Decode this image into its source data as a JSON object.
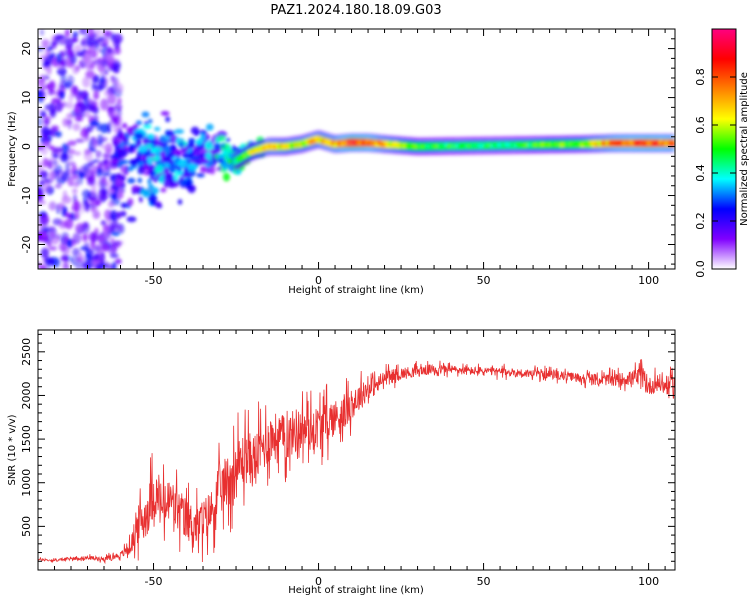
{
  "figure": {
    "title": "PAZ1.2024.180.18.09.G03"
  },
  "chart_data": [
    {
      "type": "heatmap",
      "xlabel": "Height of straight line (km)",
      "ylabel": "Frequency (Hz)",
      "xlim": [
        -85,
        108
      ],
      "ylim": [
        -25,
        24
      ],
      "xticks": [
        -50,
        0,
        50,
        100
      ],
      "yticks": [
        -20,
        -10,
        0,
        10,
        20
      ],
      "colorbar": {
        "label": "Normalized spectral amplitude",
        "range": [
          0,
          1
        ],
        "ticks": [
          0.0,
          0.2,
          0.4,
          0.6,
          0.8
        ],
        "tick_labels": [
          "0.0",
          "0.2",
          "0.4",
          "0.6",
          "0.8"
        ],
        "colormap": [
          "#ffffff",
          "#8000ff",
          "#0000ff",
          "#00ffff",
          "#00ff00",
          "#ffff00",
          "#ff8000",
          "#ff0000",
          "#ff0080"
        ]
      },
      "ridge": {
        "x": [
          -60,
          -55,
          -50,
          -45,
          -40,
          -35,
          -30,
          -25,
          -20,
          -15,
          -10,
          -5,
          0,
          5,
          10,
          15,
          20,
          30,
          40,
          50,
          60,
          70,
          80,
          90,
          100,
          108
        ],
        "freq": [
          -3,
          -2,
          -3,
          -2,
          -4,
          -1,
          -1,
          -3,
          -1,
          0,
          0,
          0.5,
          1.5,
          0.5,
          0.8,
          0.8,
          0.5,
          0,
          0.1,
          0.2,
          0.3,
          0.4,
          0.5,
          0.7,
          0.7,
          0.7
        ],
        "amplitude": [
          0.25,
          0.3,
          0.35,
          0.3,
          0.35,
          0.3,
          0.4,
          0.45,
          0.55,
          0.65,
          0.6,
          0.6,
          0.65,
          0.7,
          0.85,
          0.8,
          0.65,
          0.5,
          0.45,
          0.45,
          0.45,
          0.5,
          0.55,
          0.75,
          0.8,
          0.75
        ]
      }
    },
    {
      "type": "line",
      "xlabel": "Height of straight line (km)",
      "ylabel": "SNR (10 * v/v)",
      "xlim": [
        -85,
        108
      ],
      "ylim": [
        0,
        2750
      ],
      "xticks": [
        -50,
        0,
        50,
        100
      ],
      "yticks": [
        500,
        1000,
        1500,
        2000,
        2500
      ],
      "series": [
        {
          "color": "#e83030",
          "x": [
            -85,
            -80,
            -75,
            -70,
            -65,
            -60,
            -57,
            -55,
            -52,
            -50,
            -47,
            -45,
            -42,
            -40,
            -37,
            -35,
            -32,
            -30,
            -27,
            -25,
            -22,
            -20,
            -17,
            -15,
            -12,
            -10,
            -7,
            -5,
            -2,
            0,
            3,
            5,
            8,
            10,
            13,
            15,
            18,
            20,
            25,
            30,
            35,
            40,
            45,
            50,
            55,
            60,
            65,
            70,
            75,
            80,
            85,
            90,
            95,
            98,
            100,
            103,
            105,
            108
          ],
          "y": [
            120,
            110,
            130,
            140,
            130,
            170,
            260,
            500,
            650,
            900,
            700,
            800,
            650,
            580,
            500,
            560,
            700,
            900,
            1050,
            1150,
            1300,
            1250,
            1400,
            1500,
            1550,
            1500,
            1600,
            1620,
            1600,
            1650,
            1700,
            1750,
            1800,
            1900,
            2000,
            2080,
            2120,
            2200,
            2250,
            2280,
            2300,
            2300,
            2280,
            2280,
            2270,
            2260,
            2250,
            2240,
            2220,
            2200,
            2180,
            2180,
            2200,
            2200,
            2100,
            2150,
            2100,
            2150
          ],
          "noise": [
            20,
            20,
            25,
            30,
            35,
            50,
            120,
            300,
            380,
            420,
            380,
            400,
            380,
            350,
            330,
            350,
            380,
            420,
            450,
            470,
            450,
            430,
            420,
            400,
            380,
            380,
            370,
            360,
            350,
            350,
            320,
            300,
            280,
            250,
            220,
            180,
            150,
            120,
            100,
            90,
            80,
            70,
            70,
            70,
            70,
            70,
            70,
            70,
            70,
            80,
            90,
            100,
            120,
            200,
            150,
            150,
            150,
            150
          ]
        }
      ]
    }
  ]
}
